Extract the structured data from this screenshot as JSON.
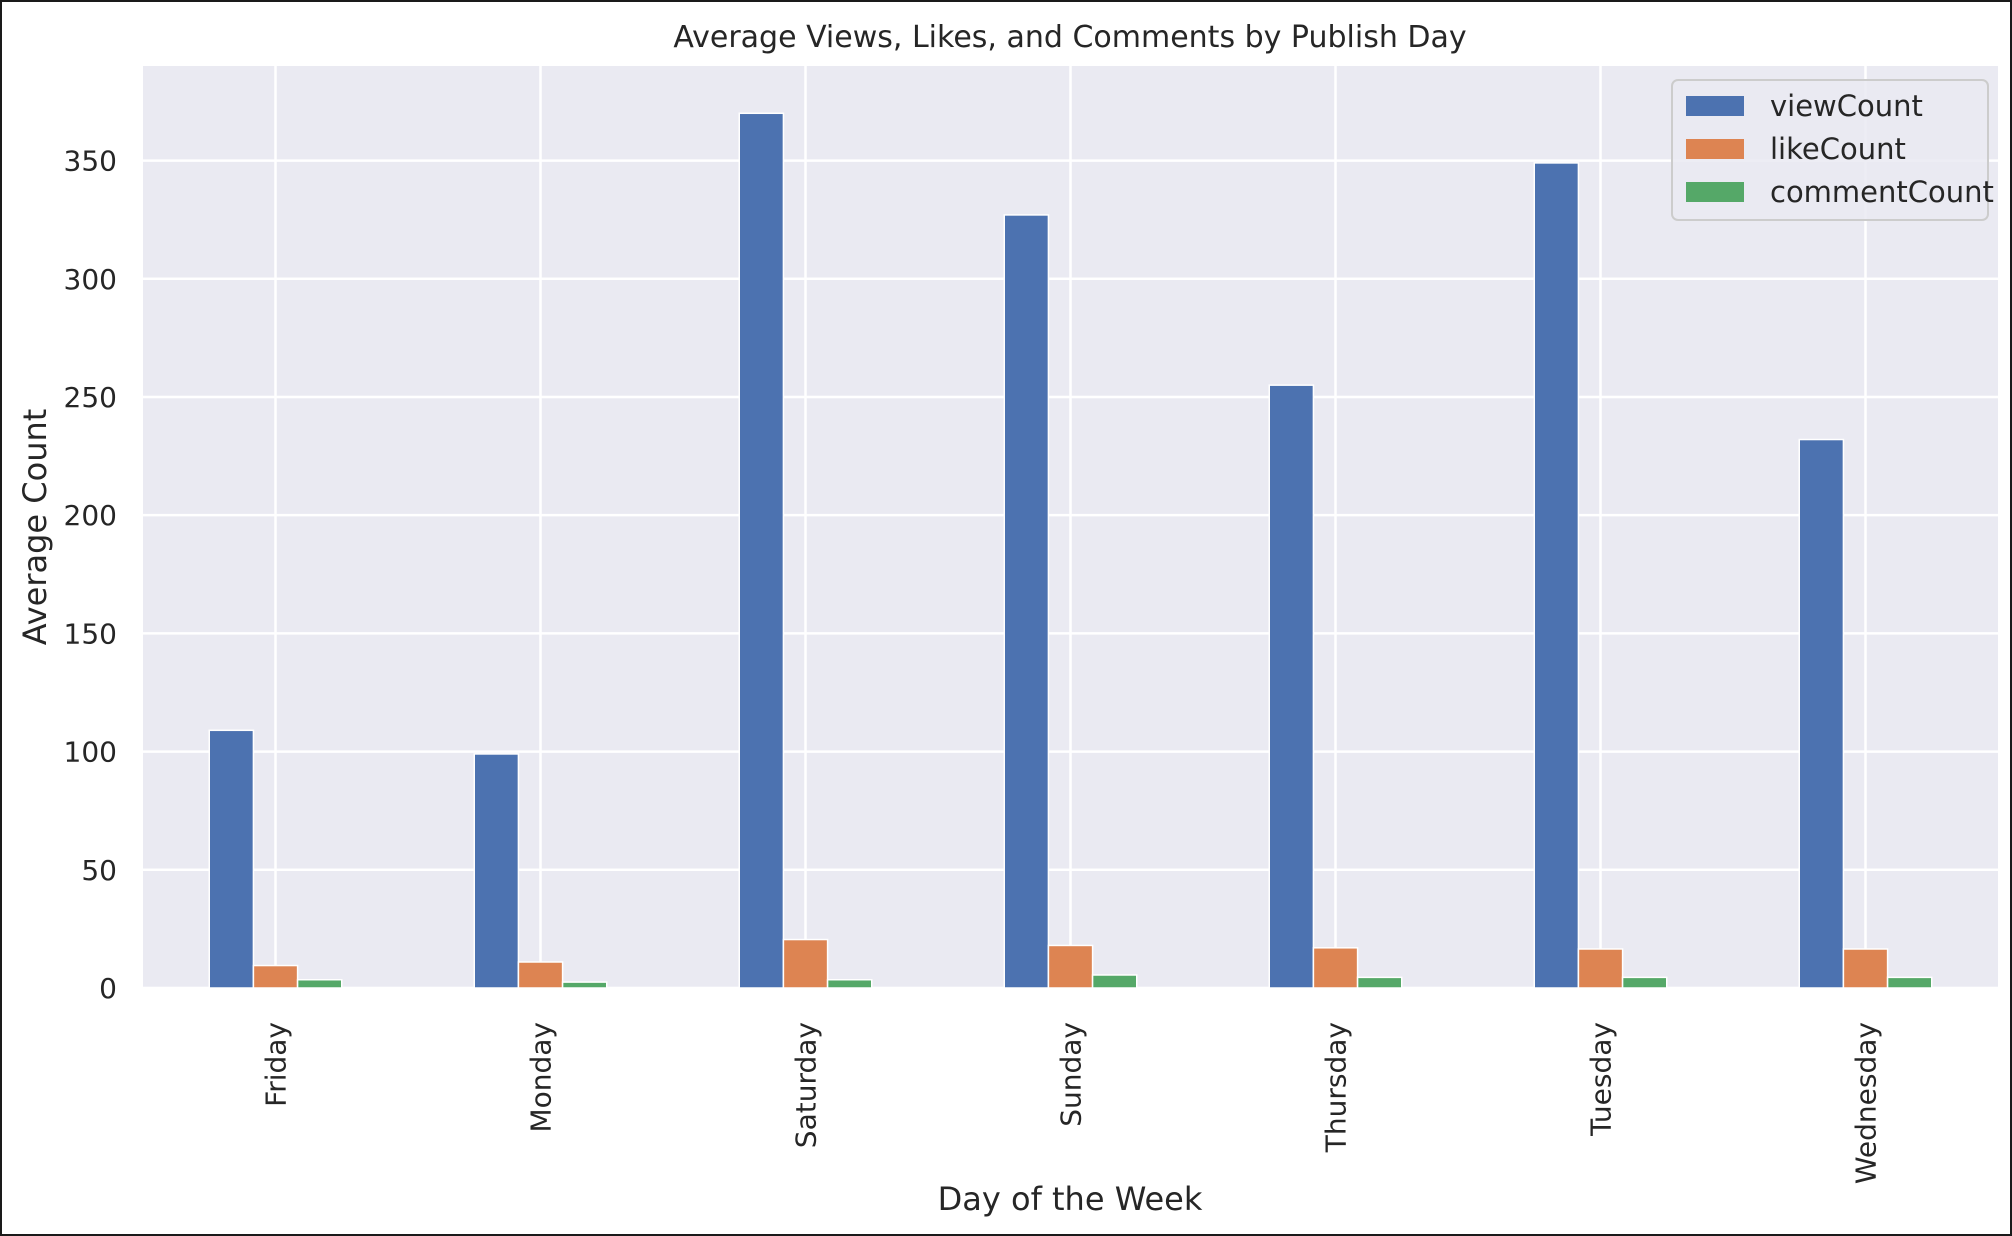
{
  "chart_data": {
    "type": "bar",
    "title": "Average Views, Likes, and Comments by Publish Day",
    "xlabel": "Day of the Week",
    "ylabel": "Average Count",
    "categories": [
      "Friday",
      "Monday",
      "Saturday",
      "Sunday",
      "Thursday",
      "Tuesday",
      "Wednesday"
    ],
    "series": [
      {
        "name": "viewCount",
        "color": "#4c72b0",
        "values": [
          109,
          99,
          370,
          327,
          255,
          349,
          232
        ]
      },
      {
        "name": "likeCount",
        "color": "#dd8452",
        "values": [
          9.5,
          11,
          20.5,
          18,
          17,
          16.5,
          16.5
        ]
      },
      {
        "name": "commentCount",
        "color": "#55a868",
        "values": [
          3.5,
          2.5,
          3.5,
          5.5,
          4.5,
          4.5,
          4.5
        ]
      }
    ],
    "ylim": [
      0,
      390
    ],
    "yticks": [
      0,
      50,
      100,
      150,
      200,
      250,
      300,
      350
    ],
    "grid": true,
    "legend": "top-right",
    "style": {
      "background": "#eaeaf2",
      "grid_color": "#ffffff",
      "text_color": "#262626"
    }
  }
}
